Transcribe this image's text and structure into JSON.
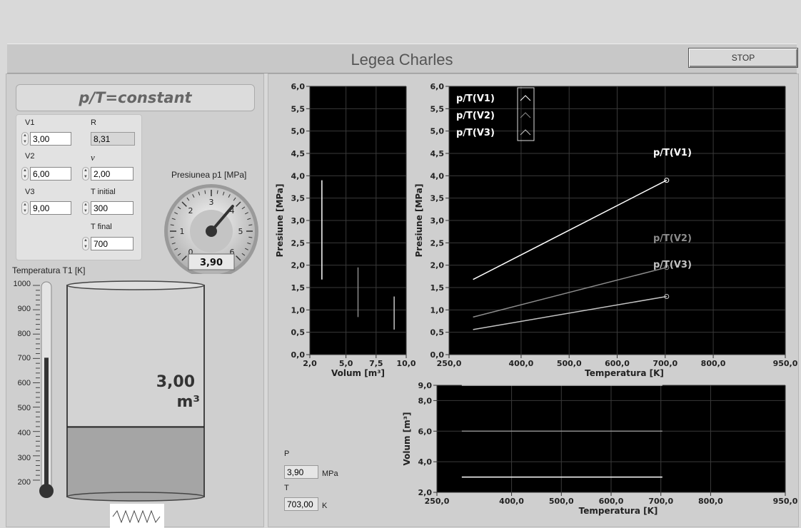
{
  "app": {
    "title": "Legea Charles",
    "stop_label": "STOP"
  },
  "formula": "p/T=constant",
  "params": {
    "v1": {
      "label": "V1",
      "value": "3,00"
    },
    "v2": {
      "label": "V2",
      "value": "6,00"
    },
    "v3": {
      "label": "V3",
      "value": "9,00"
    },
    "r": {
      "label": "R",
      "value": "8,31"
    },
    "nu": {
      "label": "ν",
      "value": "2,00"
    },
    "t_initial": {
      "label": "T initial",
      "value": "300"
    },
    "t_final": {
      "label": "T final",
      "value": "700"
    }
  },
  "gauge": {
    "title": "Presiunea p1 [MPa]",
    "value_text": "3,90",
    "value": 3.9,
    "min": 0,
    "max": 6,
    "ticks": [
      "0",
      "1",
      "2",
      "3",
      "4",
      "5",
      "6"
    ]
  },
  "thermometer": {
    "title": "Temperatura T1 [K]",
    "level": 703,
    "min": 150,
    "max": 1000,
    "ticks": [
      "1000",
      "900",
      "800",
      "700",
      "600",
      "500",
      "400",
      "300",
      "200"
    ]
  },
  "cylinder": {
    "volume_value": "3,00",
    "volume_unit": "m³",
    "fill_fraction": 0.33
  },
  "outputs": {
    "p_label": "P",
    "p_value": "3,90",
    "p_unit": "MPa",
    "t_label": "T",
    "t_value": "703,00",
    "t_unit": "K"
  },
  "colors": {
    "plot_bg": "#000000",
    "trace1": "#ffffff",
    "trace2": "#8c8c8c",
    "trace3": "#c4c4c4"
  },
  "chart_data": [
    {
      "type": "line",
      "title": "",
      "xlabel": "Volum [m³]",
      "ylabel": "Presiune [MPa]",
      "xlim": [
        2,
        10
      ],
      "ylim": [
        0,
        6
      ],
      "x_ticks": [
        "2,0",
        "5,0",
        "7,5",
        "10,0"
      ],
      "y_ticks": [
        "0,0",
        "0,5",
        "1,0",
        "1,5",
        "2,0",
        "2,5",
        "3,0",
        "3,5",
        "4,0",
        "4,5",
        "5,0",
        "5,5",
        "6,0"
      ],
      "grid": true,
      "series": [
        {
          "x": [
            3,
            3
          ],
          "y": [
            1.68,
            3.9
          ]
        },
        {
          "x": [
            6,
            6
          ],
          "y": [
            0.84,
            1.95
          ]
        },
        {
          "x": [
            9,
            9
          ],
          "y": [
            0.56,
            1.3
          ]
        }
      ]
    },
    {
      "type": "line",
      "title": "",
      "xlabel": "Temperatura [K]",
      "ylabel": "Presiune [MPa]",
      "xlim": [
        250,
        950
      ],
      "ylim": [
        0,
        6
      ],
      "x_ticks": [
        "250,0",
        "400,0",
        "500,0",
        "600,0",
        "700,0",
        "800,0",
        "950,0"
      ],
      "y_ticks": [
        "0,0",
        "0,5",
        "1,0",
        "1,5",
        "2,0",
        "2,5",
        "3,0",
        "3,5",
        "4,0",
        "4,5",
        "5,0",
        "5,5",
        "6,0"
      ],
      "grid": true,
      "legend_position": "top-left",
      "series": [
        {
          "name": "p/T(V1)",
          "x": [
            300,
            703
          ],
          "y": [
            1.68,
            3.9
          ]
        },
        {
          "name": "p/T(V2)",
          "x": [
            300,
            703
          ],
          "y": [
            0.84,
            1.95
          ]
        },
        {
          "name": "p/T(V3)",
          "x": [
            300,
            703
          ],
          "y": [
            0.56,
            1.3
          ]
        }
      ],
      "annotations": [
        "p/T(V1)",
        "p/T(V2)",
        "p/T(V3)"
      ]
    },
    {
      "type": "line",
      "title": "",
      "xlabel": "Temperatura [K]",
      "ylabel": "Volum [m³]",
      "xlim": [
        250,
        950
      ],
      "ylim": [
        2,
        9
      ],
      "x_ticks": [
        "250,0",
        "400,0",
        "500,0",
        "600,0",
        "700,0",
        "800,0",
        "950,0"
      ],
      "y_ticks": [
        "2,0",
        "4,0",
        "6,0",
        "8,0",
        "9,0"
      ],
      "grid": true,
      "series": [
        {
          "x": [
            300,
            703
          ],
          "y": [
            3,
            3
          ]
        },
        {
          "x": [
            300,
            703
          ],
          "y": [
            6,
            6
          ]
        },
        {
          "x": [
            300,
            703
          ],
          "y": [
            9,
            9
          ]
        }
      ]
    }
  ]
}
